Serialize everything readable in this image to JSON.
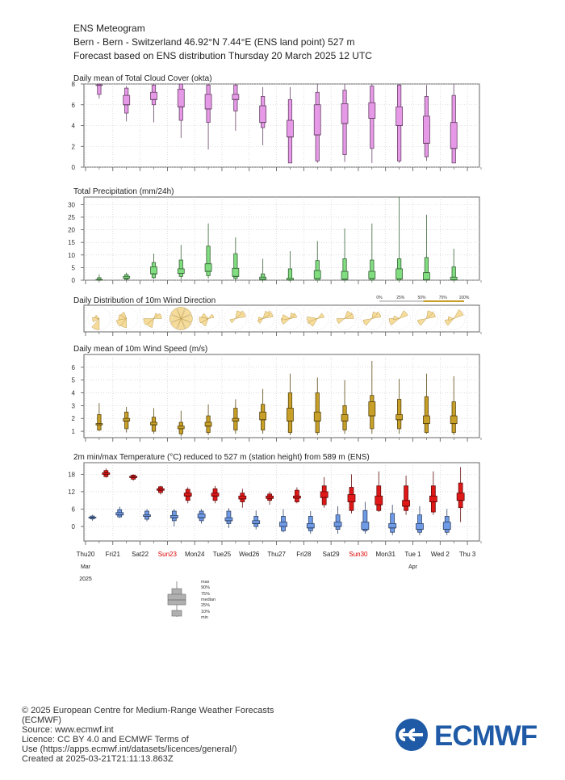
{
  "header": {
    "title": "ENS Meteogram",
    "location": "Bern - Bern - Switzerland 46.92°N 7.44°E (ENS land point) 527 m",
    "forecast": "Forecast based on ENS distribution Thursday 20 March 2025 12 UTC"
  },
  "days": [
    "Thu20",
    "Fri21",
    "Sat22",
    "Sun23",
    "Mon24",
    "Tue25",
    "Wed26",
    "Thu27",
    "Fri28",
    "Sat29",
    "Sun30",
    "Mon31",
    "Tue 1",
    "Wed 2",
    "Thu 3"
  ],
  "weekend_days": [
    "Sun23",
    "Sun30"
  ],
  "month_labels": [
    {
      "label": "Mar",
      "day_index": 0
    },
    {
      "label": "Apr",
      "day_index": 12
    }
  ],
  "year_label": "2025",
  "colors": {
    "cloud": "#e699e6",
    "precip": "#80dd80",
    "wind_rose": "#f5dc9a",
    "wind_speed": "#c8a028",
    "tmax": "#e01818",
    "tmin": "#6f9ae6",
    "weekend": "#dd0000"
  },
  "chart_data": [
    {
      "type": "box",
      "title": "Daily mean of Total Cloud Cover (okta)",
      "ylim": [
        0,
        8
      ],
      "yticks": [
        0,
        2,
        4,
        6,
        8
      ],
      "series": [
        {
          "boxes": [
            [
              6.6,
              7.0,
              7.9,
              7.9,
              8.0,
              8.0
            ],
            [
              4.4,
              5.2,
              6.0,
              6.9,
              7.6,
              7.8
            ],
            [
              4.3,
              6.0,
              6.5,
              7.2,
              7.9,
              8.0
            ],
            [
              2.8,
              4.5,
              5.8,
              7.5,
              8.0,
              8.0
            ],
            [
              1.7,
              4.3,
              5.6,
              7.0,
              7.9,
              8.0
            ],
            [
              3.5,
              5.4,
              6.5,
              7.0,
              7.9,
              8.0
            ],
            [
              2.1,
              3.8,
              4.3,
              5.9,
              6.8,
              7.7
            ],
            [
              0.4,
              0.4,
              2.9,
              4.5,
              6.5,
              7.7
            ],
            [
              0.4,
              0.6,
              3.1,
              6.0,
              7.2,
              8.0
            ],
            [
              0.5,
              1.2,
              4.2,
              6.1,
              7.4,
              8.0
            ],
            [
              0.4,
              1.8,
              4.7,
              6.2,
              7.8,
              8.0
            ],
            [
              0.4,
              0.6,
              4.0,
              5.8,
              7.9,
              8.0
            ],
            [
              0.6,
              1.0,
              2.3,
              4.9,
              6.8,
              7.9
            ],
            [
              0.4,
              0.4,
              1.8,
              4.3,
              6.9,
              8.0
            ]
          ]
        }
      ]
    },
    {
      "type": "box",
      "title": "Total Precipitation (mm/24h)",
      "ylim": [
        0,
        33
      ],
      "yticks": [
        0,
        5,
        10,
        15,
        20,
        25,
        30
      ],
      "series": [
        {
          "boxes": [
            [
              0.0,
              0.0,
              0.1,
              0.3,
              1.0,
              2.3
            ],
            [
              0.0,
              0.3,
              0.8,
              1.5,
              2.2,
              3.0
            ],
            [
              0.5,
              1.0,
              2.5,
              5.3,
              7.0,
              10.5
            ],
            [
              0.3,
              1.5,
              2.7,
              4.5,
              8.0,
              14.0
            ],
            [
              0.7,
              1.8,
              3.5,
              6.5,
              13.5,
              22.5
            ],
            [
              0.0,
              0.7,
              1.5,
              4.7,
              10.5,
              17.0
            ],
            [
              0.0,
              0.0,
              0.3,
              1.2,
              2.5,
              8.5
            ],
            [
              0.0,
              0.0,
              0.1,
              0.8,
              4.5,
              11.5
            ],
            [
              0.0,
              0.0,
              0.6,
              3.8,
              7.8,
              15.5
            ],
            [
              0.0,
              0.0,
              0.4,
              3.5,
              8.5,
              20.5
            ],
            [
              0.0,
              0.0,
              0.6,
              3.5,
              8.0,
              22.5
            ],
            [
              0.0,
              0.0,
              0.5,
              4.5,
              8.5,
              33.0
            ],
            [
              0.0,
              0.0,
              0.2,
              3.0,
              9.0,
              26.0
            ],
            [
              0.0,
              0.0,
              0.2,
              1.2,
              5.3,
              12.5
            ]
          ]
        }
      ]
    },
    {
      "type": "rose",
      "title": "Daily Distribution of 10m Wind Direction",
      "legend": [
        "0%",
        "25%",
        "50%",
        "75%",
        "100%"
      ]
    },
    {
      "type": "box",
      "title": "Daily mean of 10m Wind Speed (m/s)",
      "ylim": [
        0.5,
        7
      ],
      "yticks": [
        1,
        2,
        3,
        4,
        5,
        6
      ],
      "series": [
        {
          "boxes": [
            [
              1.0,
              1.1,
              1.5,
              1.6,
              2.3,
              3.2
            ],
            [
              0.9,
              1.2,
              1.8,
              2.0,
              2.5,
              2.9
            ],
            [
              0.8,
              1.0,
              1.5,
              1.7,
              2.1,
              2.8
            ],
            [
              0.6,
              0.8,
              1.2,
              1.4,
              1.7,
              2.6
            ],
            [
              0.7,
              0.9,
              1.4,
              1.7,
              2.2,
              3.1
            ],
            [
              0.8,
              1.1,
              1.8,
              2.0,
              2.8,
              3.5
            ],
            [
              0.8,
              1.1,
              1.9,
              2.5,
              3.1,
              4.3
            ],
            [
              0.7,
              0.9,
              1.8,
              2.8,
              4.0,
              5.5
            ],
            [
              0.7,
              0.9,
              1.8,
              2.5,
              4.0,
              5.2
            ],
            [
              0.8,
              1.1,
              1.8,
              2.3,
              3.0,
              5.0
            ],
            [
              0.8,
              1.2,
              2.2,
              3.3,
              3.8,
              6.5
            ],
            [
              0.8,
              1.2,
              1.9,
              2.3,
              3.5,
              5.1
            ],
            [
              0.8,
              0.9,
              1.6,
              2.2,
              3.7,
              5.5
            ],
            [
              0.7,
              0.9,
              1.6,
              2.2,
              3.3,
              5.3
            ]
          ]
        }
      ]
    },
    {
      "type": "box",
      "title": "2m min/max Temperature (°C) reduced to 527 m (station height) from 589 m (ENS)",
      "ylim": [
        -5,
        22
      ],
      "yticks": [
        0,
        6,
        12,
        18
      ],
      "series": [
        {
          "name": "max",
          "boxes": [
            [
              16.8,
              17.2,
              18.0,
              18.5,
              19.3,
              20.0
            ],
            [
              15.8,
              16.3,
              16.9,
              17.3,
              17.7,
              18.0
            ],
            [
              11.0,
              11.7,
              12.5,
              13.0,
              13.7,
              14.0
            ],
            [
              8.0,
              9.0,
              10.5,
              11.5,
              12.8,
              13.5
            ],
            [
              8.0,
              9.0,
              10.5,
              11.5,
              13.0,
              14.0
            ],
            [
              6.5,
              8.5,
              9.5,
              10.5,
              11.5,
              13.0
            ],
            [
              7.5,
              9.0,
              9.7,
              10.5,
              11.2,
              12.0
            ],
            [
              8.0,
              8.5,
              9.8,
              10.5,
              12.5,
              13.5
            ],
            [
              6.5,
              7.5,
              10.0,
              12.0,
              14.0,
              17.0
            ],
            [
              4.5,
              5.5,
              8.5,
              11.0,
              13.5,
              18.0
            ],
            [
              5.0,
              5.5,
              7.5,
              10.5,
              14.0,
              19.0
            ],
            [
              4.0,
              5.5,
              7.0,
              9.0,
              14.0,
              17.5
            ],
            [
              4.0,
              5.0,
              8.5,
              10.5,
              14.0,
              19.0
            ],
            [
              1.5,
              6.5,
              9.0,
              11.5,
              15.0,
              20.5
            ]
          ]
        },
        {
          "name": "min",
          "boxes": [
            [
              2.0,
              2.6,
              3.0,
              3.2,
              3.6,
              4.0
            ],
            [
              2.9,
              3.3,
              4.0,
              4.8,
              5.8,
              6.8
            ],
            [
              1.8,
              2.5,
              3.5,
              4.0,
              5.3,
              6.0
            ],
            [
              0.0,
              2.0,
              3.0,
              3.8,
              5.3,
              6.0
            ],
            [
              1.0,
              2.0,
              3.0,
              4.3,
              5.3,
              6.0
            ],
            [
              -0.5,
              1.0,
              2.0,
              3.0,
              5.3,
              6.3
            ],
            [
              -1.0,
              0.0,
              1.0,
              2.0,
              3.5,
              5.5
            ],
            [
              -2.0,
              -1.5,
              0.0,
              1.5,
              3.5,
              6.0
            ],
            [
              -2.5,
              -1.5,
              -0.5,
              1.0,
              3.5,
              5.3
            ],
            [
              -2.5,
              -1.0,
              0.0,
              1.5,
              4.0,
              7.0
            ],
            [
              -2.5,
              -1.5,
              -1.0,
              1.5,
              5.5,
              8.5
            ],
            [
              -3.0,
              -2.0,
              -0.5,
              1.0,
              4.5,
              7.5
            ],
            [
              -3.0,
              -2.0,
              -1.0,
              1.0,
              4.0,
              7.0
            ],
            [
              -3.0,
              -2.0,
              -1.0,
              1.5,
              3.5,
              6.0
            ]
          ]
        }
      ]
    }
  ],
  "box_legend": {
    "labels": [
      "max",
      "90%",
      "75%",
      "median",
      "25%",
      "10%",
      "min"
    ]
  },
  "footer": {
    "line1": "© 2025 European Centre for Medium-Range Weather Forecasts",
    "line2": "(ECMWF)",
    "line3": "Source: www.ecmwf.int",
    "line4": "Licence: CC BY 4.0 and ECMWF Terms of",
    "line5": "Use (https://apps.ecmwf.int/datasets/licences/general/)",
    "line6": "Created at 2025-03-21T21:11:13.863Z"
  },
  "logo": {
    "text": "ECMWF",
    "color": "#1f5aa6"
  }
}
